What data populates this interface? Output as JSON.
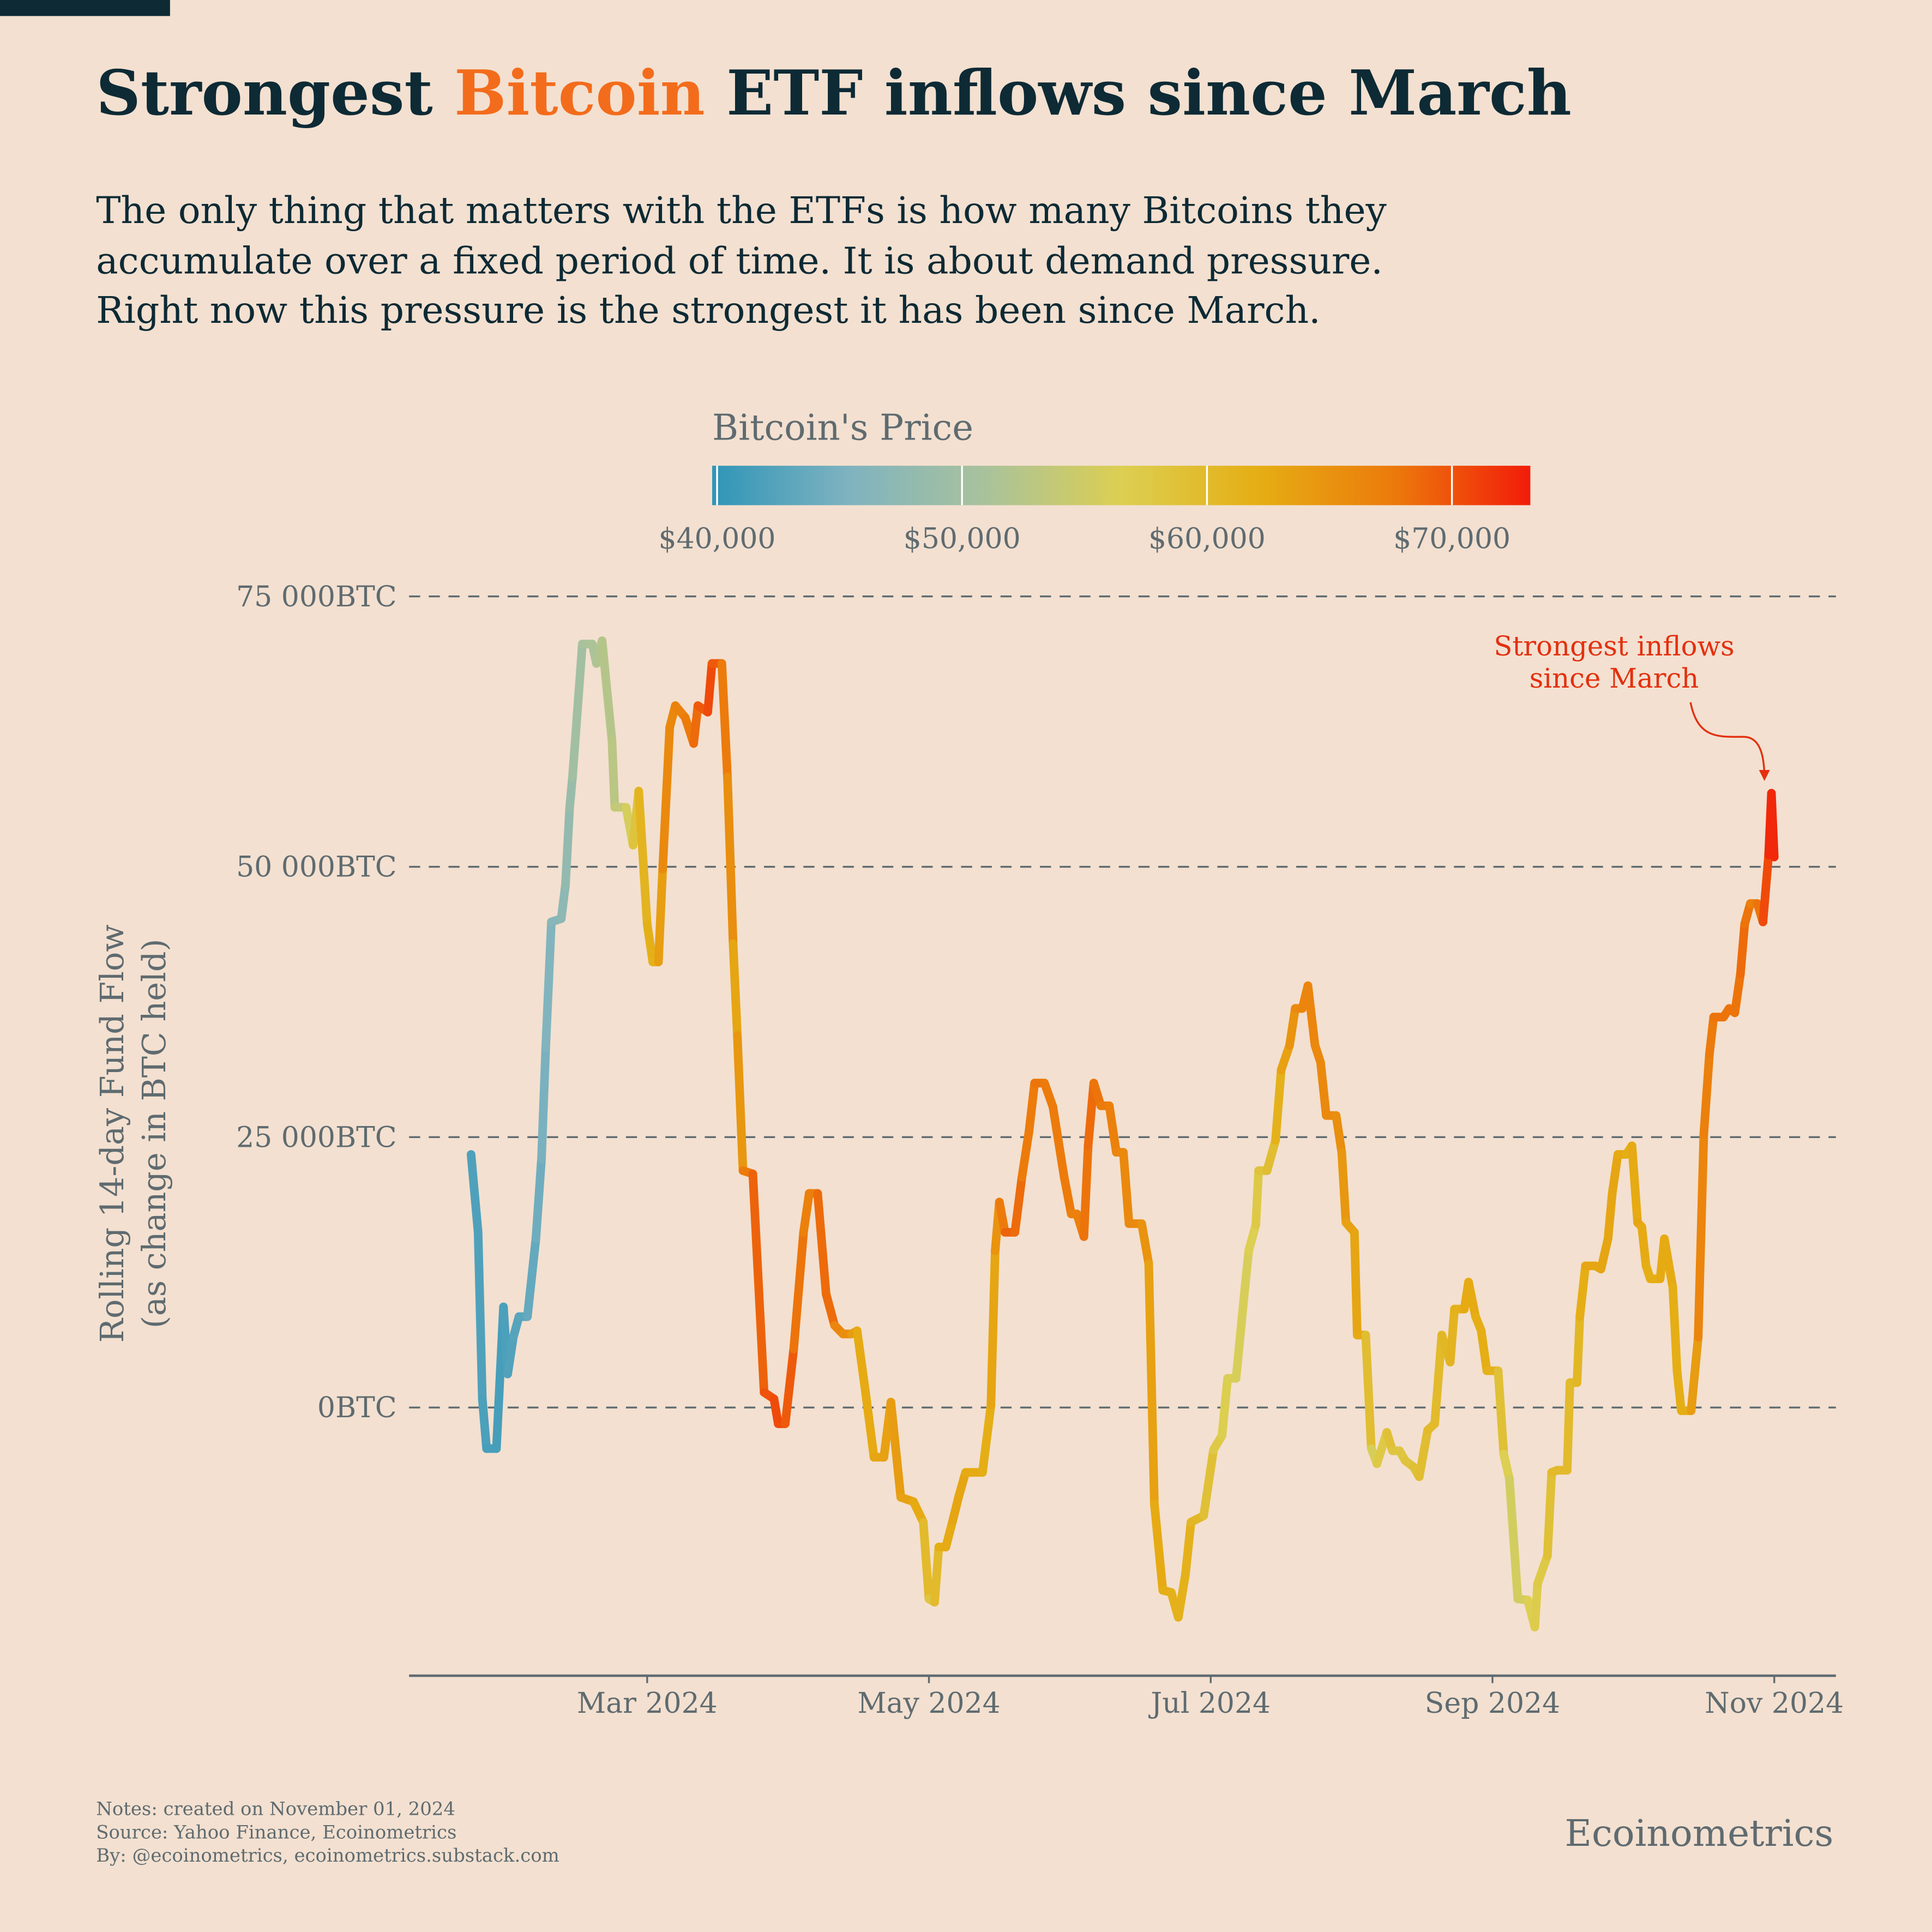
{
  "chart_data": {
    "type": "line",
    "title": {
      "before": "Strongest",
      "highlight": "Bitcoin",
      "after": "ETF inflows since March",
      "color": "#0d2a35",
      "highlight_color": "#f36c1c"
    },
    "subtitle": [
      "The only thing that matters with the ETFs is how many Bitcoins they",
      "accumulate over a fixed period of time. It is about demand pressure.",
      "Right now this pressure is the strongest it has been since March."
    ],
    "ylabel": [
      "Rolling 14-day Fund Flow",
      "(as change in BTC held)"
    ],
    "xlim": [
      0.31,
      10.42
    ],
    "xticks": [
      {
        "value": 2,
        "label": "Mar 2024"
      },
      {
        "value": 4,
        "label": "May 2024"
      },
      {
        "value": 6,
        "label": "Jul 2024"
      },
      {
        "value": 8,
        "label": "Sep 2024"
      },
      {
        "value": 10,
        "label": "Nov 2024"
      }
    ],
    "ylim": [
      -24800,
      76600
    ],
    "yticks": [
      {
        "value": 0,
        "label": "0BTC"
      },
      {
        "value": 25000,
        "label": "25 000BTC"
      },
      {
        "value": 50000,
        "label": "50 000BTC"
      },
      {
        "value": 75000,
        "label": "75 000BTC"
      }
    ],
    "grid": true,
    "x": [
      0.75,
      0.8,
      0.83,
      0.86,
      0.93,
      0.98,
      1.01,
      1.05,
      1.09,
      1.15,
      1.21,
      1.25,
      1.28,
      1.32,
      1.39,
      1.42,
      1.45,
      1.47,
      1.54,
      1.61,
      1.64,
      1.68,
      1.75,
      1.77,
      1.85,
      1.9,
      1.94,
      2.0,
      2.04,
      2.08,
      2.11,
      2.16,
      2.2,
      2.27,
      2.33,
      2.36,
      2.43,
      2.46,
      2.53,
      2.57,
      2.61,
      2.64,
      2.68,
      2.75,
      2.83,
      2.9,
      2.93,
      2.98,
      3.04,
      3.11,
      3.15,
      3.21,
      3.27,
      3.33,
      3.39,
      3.45,
      3.49,
      3.55,
      3.61,
      3.68,
      3.73,
      3.8,
      3.89,
      3.96,
      4.0,
      4.04,
      4.07,
      4.12,
      4.17,
      4.21,
      4.26,
      4.38,
      4.44,
      4.47,
      4.5,
      4.54,
      4.61,
      4.66,
      4.71,
      4.75,
      4.82,
      4.88,
      4.96,
      5.01,
      5.05,
      5.1,
      5.13,
      5.17,
      5.22,
      5.28,
      5.33,
      5.38,
      5.42,
      5.51,
      5.56,
      5.6,
      5.66,
      5.72,
      5.77,
      5.82,
      5.86,
      5.95,
      6.02,
      6.08,
      6.12,
      6.18,
      6.24,
      6.27,
      6.32,
      6.34,
      6.4,
      6.46,
      6.5,
      6.56,
      6.6,
      6.65,
      6.69,
      6.74,
      6.78,
      6.82,
      6.89,
      6.93,
      6.96,
      7.02,
      7.04,
      7.1,
      7.14,
      7.18,
      7.25,
      7.29,
      7.34,
      7.38,
      7.44,
      7.48,
      7.54,
      7.59,
      7.64,
      7.7,
      7.73,
      7.8,
      7.83,
      7.88,
      7.92,
      7.96,
      8.04,
      8.08,
      8.12,
      8.18,
      8.25,
      8.3,
      8.32,
      8.39,
      8.42,
      8.46,
      8.53,
      8.55,
      8.6,
      8.62,
      8.66,
      8.73,
      8.77,
      8.82,
      8.85,
      8.89,
      8.95,
      8.99,
      9.03,
      9.06,
      9.09,
      9.12,
      9.19,
      9.22,
      9.28,
      9.31,
      9.34,
      9.41,
      9.46,
      9.5,
      9.54,
      9.57,
      9.64,
      9.68,
      9.72,
      9.76,
      9.79,
      9.83,
      9.88,
      9.92,
      9.96,
      9.98,
      10.0
    ],
    "values": [
      23400,
      16200,
      800,
      -3800,
      -3800,
      9300,
      3100,
      6500,
      8400,
      8400,
      15600,
      23000,
      33300,
      44900,
      45200,
      48300,
      55500,
      58300,
      70600,
      70600,
      68800,
      70900,
      61700,
      55500,
      55500,
      52000,
      57000,
      44700,
      41200,
      41200,
      49800,
      62900,
      64900,
      63800,
      61400,
      64900,
      64300,
      68800,
      68800,
      58300,
      42900,
      34400,
      21900,
      21600,
      1400,
      800,
      -1500,
      -1500,
      5400,
      16200,
      19800,
      19800,
      10500,
      7600,
      6800,
      6800,
      7100,
      1400,
      -4600,
      -4600,
      500,
      -8300,
      -8700,
      -10600,
      -17700,
      -18000,
      -12900,
      -12900,
      -10400,
      -8300,
      -6000,
      -6000,
      200,
      14500,
      19000,
      16200,
      16200,
      21300,
      25500,
      30000,
      30000,
      27800,
      21300,
      17900,
      17900,
      15800,
      24200,
      30000,
      27900,
      27900,
      23600,
      23600,
      17000,
      17000,
      13300,
      -8900,
      -16900,
      -17100,
      -19400,
      -15500,
      -10600,
      -10000,
      -3900,
      -2600,
      2700,
      2700,
      10700,
      14500,
      16900,
      21900,
      21900,
      24700,
      31200,
      33500,
      36900,
      36900,
      39000,
      33500,
      31900,
      27000,
      27000,
      23600,
      17100,
      16200,
      6700,
      6700,
      -3800,
      -5200,
      -2300,
      -4000,
      -4000,
      -4900,
      -5500,
      -6400,
      -2100,
      -1500,
      6700,
      4200,
      9100,
      9100,
      11600,
      8400,
      7100,
      3400,
      3400,
      -4300,
      -6600,
      -17700,
      -17800,
      -20300,
      -16300,
      -13700,
      -6000,
      -5800,
      -5800,
      2300,
      2300,
      8400,
      13100,
      13100,
      12800,
      15600,
      19800,
      23400,
      23400,
      24200,
      17100,
      16700,
      13100,
      11900,
      11900,
      15600,
      11100,
      3400,
      -300,
      -300,
      6500,
      25300,
      32700,
      36100,
      36100,
      36900,
      36500,
      40100,
      44700,
      46600,
      46600,
      44900,
      51100,
      56800,
      50900
    ],
    "color_values": [
      42000,
      42000,
      42000,
      41500,
      41500,
      41500,
      42000,
      42500,
      42500,
      43000,
      44000,
      44500,
      45500,
      46000,
      47000,
      47500,
      48500,
      49000,
      51000,
      51000,
      51500,
      52000,
      52500,
      53000,
      54500,
      57000,
      60000,
      62000,
      61500,
      61500,
      66000,
      66000,
      66500,
      67000,
      68000,
      69000,
      70000,
      71000,
      68000,
      67000,
      64000,
      62000,
      67000,
      68000,
      70000,
      70000,
      71000,
      70000,
      69000,
      67000,
      67000,
      67000,
      70000,
      67000,
      66000,
      65000,
      63000,
      62000,
      63000,
      63000,
      64000,
      64000,
      63000,
      62000,
      58000,
      58000,
      62000,
      62000,
      63000,
      63000,
      63000,
      62000,
      62000,
      64000,
      66000,
      69000,
      69000,
      68000,
      67000,
      68000,
      68000,
      67000,
      68000,
      67000,
      67000,
      67000,
      69000,
      68000,
      68000,
      67000,
      67000,
      66000,
      66000,
      66000,
      64000,
      63000,
      62000,
      62000,
      61000,
      62000,
      61000,
      60000,
      58000,
      57000,
      56500,
      56000,
      56000,
      56000,
      57000,
      58000,
      59000,
      60000,
      63000,
      64000,
      66000,
      66000,
      67000,
      66000,
      66000,
      66000,
      66000,
      65000,
      64000,
      63000,
      63000,
      62000,
      57000,
      55000,
      60000,
      58000,
      58000,
      58000,
      59000,
      59000,
      60000,
      60000,
      60000,
      61000,
      61000,
      62000,
      63000,
      62000,
      62000,
      62000,
      61000,
      57000,
      56000,
      55000,
      56000,
      57000,
      57000,
      58000,
      60000,
      60000,
      60000,
      60000,
      60000,
      61000,
      63000,
      63000,
      63000,
      63000,
      63000,
      63000,
      62000,
      62000,
      63000,
      63000,
      62000,
      62000,
      62000,
      63000,
      62000,
      62000,
      62000,
      62000,
      66000,
      67000,
      67000,
      68000,
      68000,
      68000,
      68000,
      68000,
      69000,
      67000,
      67000,
      69000,
      72000,
      73000,
      72000
    ],
    "colorbar": {
      "title": "Bitcoin's Price",
      "lim": [
        39800,
        73200
      ],
      "ticks": [
        {
          "value": 40000,
          "label": "$40,000"
        },
        {
          "value": 50000,
          "label": "$50,000"
        },
        {
          "value": 60000,
          "label": "$60,000"
        },
        {
          "value": 70000,
          "label": "$70,000"
        }
      ],
      "colors": [
        "#2f95b8",
        "#7fb3c0",
        "#a9c29c",
        "#dccf52",
        "#e5ae14",
        "#ec7a0b",
        "#f21c0a"
      ]
    },
    "annotation": {
      "lines": [
        "Strongest inflows",
        "since March"
      ],
      "color": "#e3300f"
    },
    "notes": [
      "Notes: created on November 01, 2024",
      "Source: Yahoo Finance, Ecoinometrics",
      "By: @ecoinometrics, ecoinometrics.substack.com"
    ],
    "brand": "Ecoinometrics"
  }
}
